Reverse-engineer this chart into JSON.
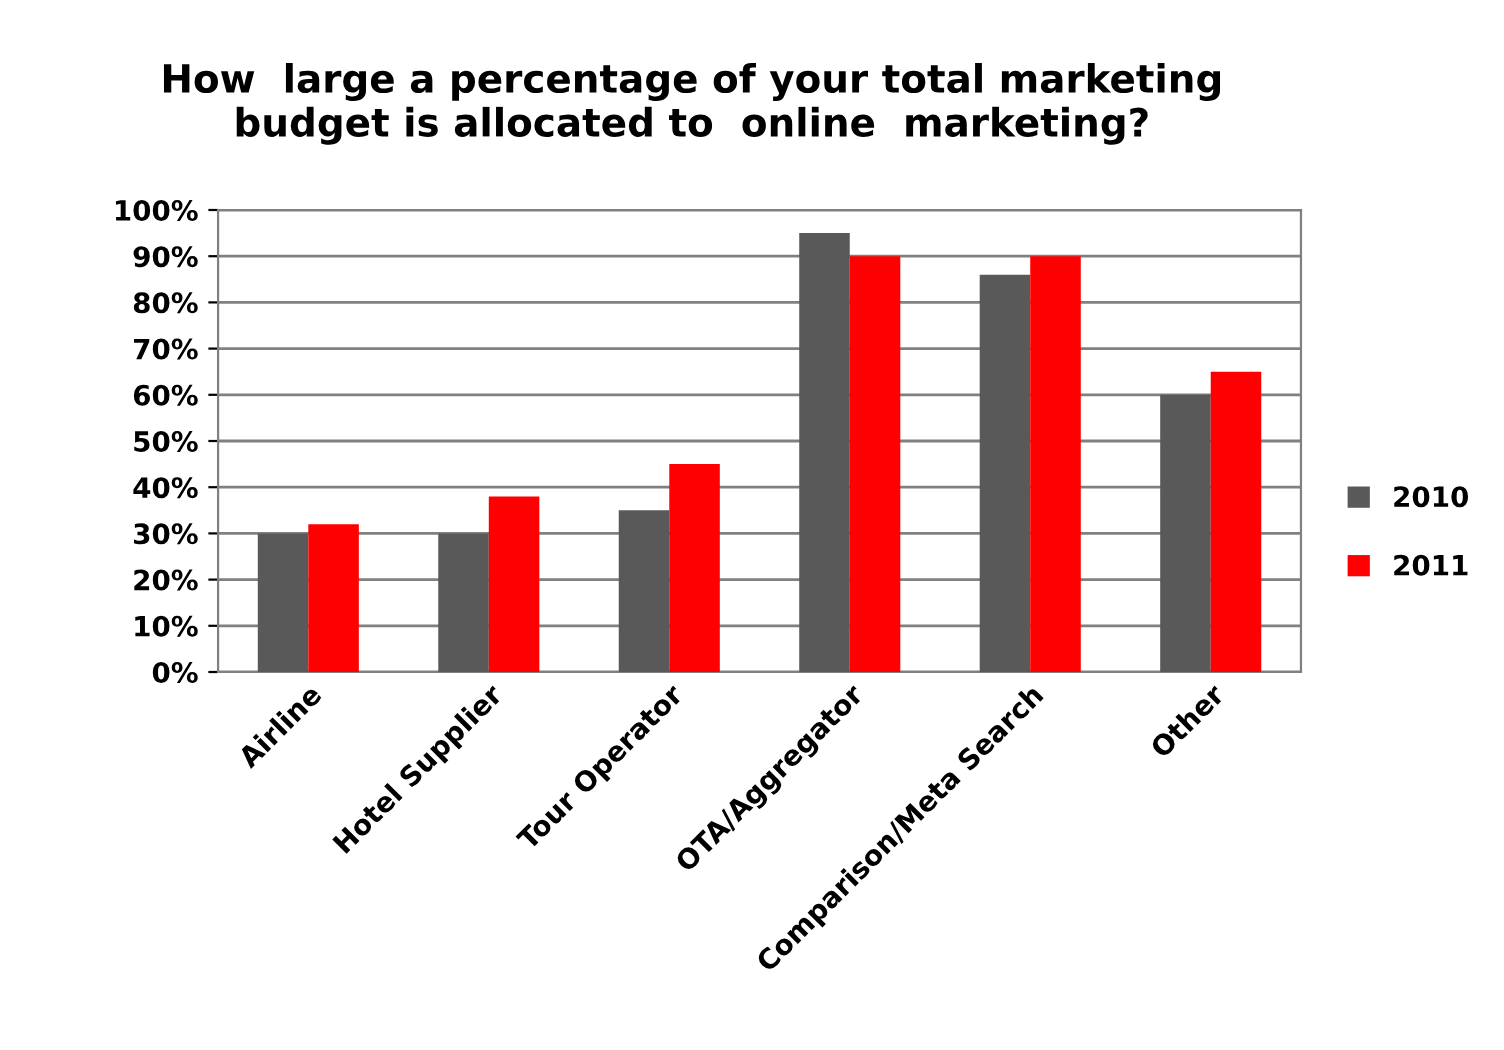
{
  "chart_data": {
    "type": "bar",
    "title": "How  large a percentage of your total marketing\nbudget is allocated to  online  marketing?",
    "categories": [
      "Airline",
      "Hotel Supplier",
      "Tour Operator",
      "OTA/Aggregator",
      "Comparison/Meta Search",
      "Other"
    ],
    "series": [
      {
        "name": "2010",
        "color": "#595959",
        "values": [
          30,
          30,
          35,
          95,
          86,
          60
        ]
      },
      {
        "name": "2011",
        "color": "#ff0000",
        "values": [
          32,
          38,
          45,
          90,
          90,
          65
        ]
      }
    ],
    "ylim": [
      0,
      100
    ],
    "yticks": [
      {
        "value": 0,
        "label": "0%"
      },
      {
        "value": 10,
        "label": "10%"
      },
      {
        "value": 20,
        "label": "20%"
      },
      {
        "value": 30,
        "label": "30%"
      },
      {
        "value": 40,
        "label": "40%"
      },
      {
        "value": 50,
        "label": "50%"
      },
      {
        "value": 60,
        "label": "60%"
      },
      {
        "value": 70,
        "label": "70%"
      },
      {
        "value": 80,
        "label": "80%"
      },
      {
        "value": 90,
        "label": "90%"
      },
      {
        "value": 100,
        "label": "100%"
      }
    ],
    "grid": "y",
    "legend": "right"
  }
}
